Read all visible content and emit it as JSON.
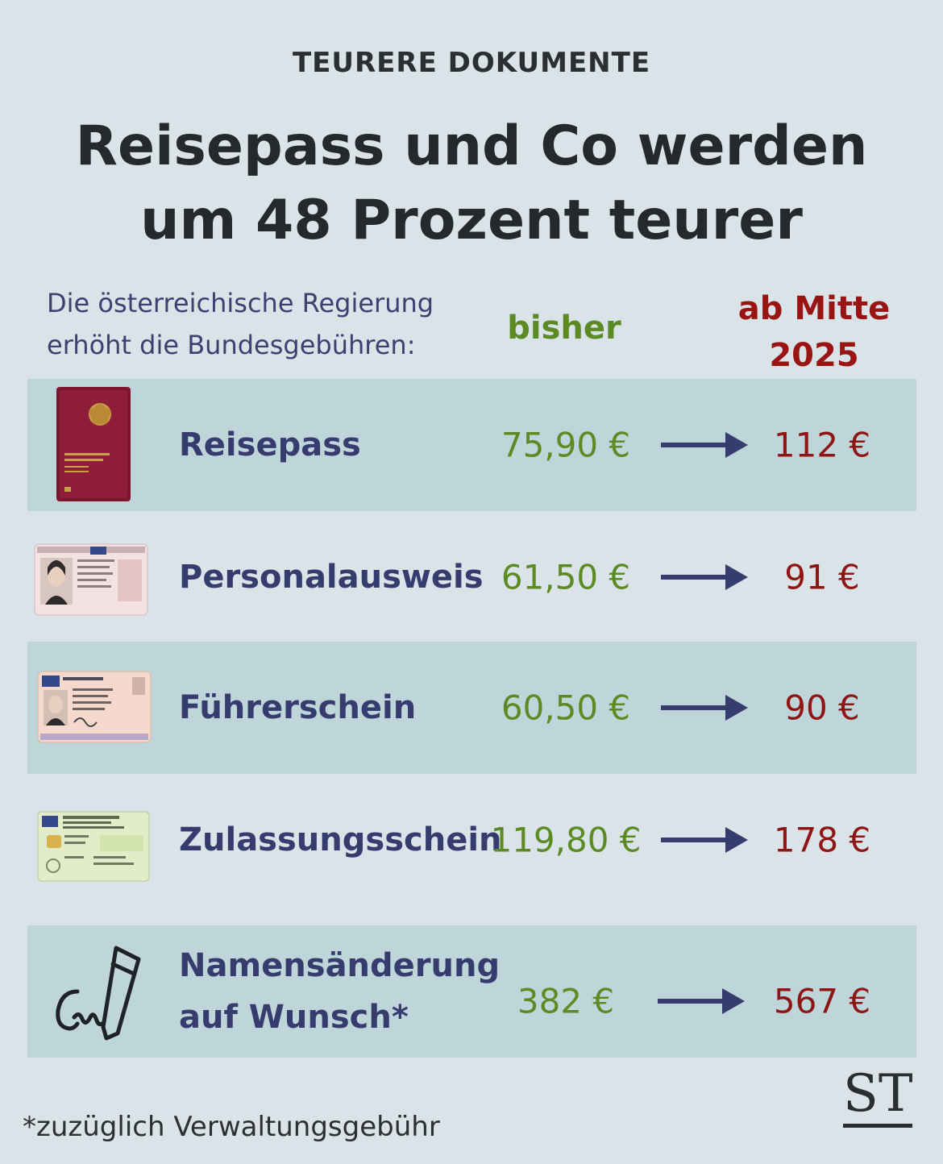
{
  "kicker": "TEURERE DOKUMENTE",
  "headline": {
    "line1": "Reisepass und Co werden",
    "line2": "um 48 Prozent teurer"
  },
  "intro": {
    "line1": "Die österreichische Regierung",
    "line2": "erhöht die Bundesgebühren:"
  },
  "columns": {
    "old": "bisher",
    "new_line1": "ab Mitte",
    "new_line2": "2025"
  },
  "rows": [
    {
      "name": "Reisepass",
      "name_line2": "",
      "old": "75,90 €",
      "new": "112 €",
      "icon": "passport-icon"
    },
    {
      "name": "Personalausweis",
      "name_line2": "",
      "old": "61,50 €",
      "new": "91 €",
      "icon": "id-card-icon"
    },
    {
      "name": "Führerschein",
      "name_line2": "",
      "old": "60,50 €",
      "new": "90 €",
      "icon": "driving-licence-icon"
    },
    {
      "name": "Zulassungsschein",
      "name_line2": "",
      "old": "119,80 €",
      "new": "178 €",
      "icon": "vehicle-registration-icon"
    },
    {
      "name": "Namensänderung",
      "name_line2": "auf Wunsch*",
      "old": "382 €",
      "new": "567 €",
      "icon": "signature-pen-icon"
    }
  ],
  "footnote": "*zuzüglich Verwaltungsgebühr",
  "logo": "ST",
  "colors": {
    "background": "#d9e3e8",
    "row_tint": "#bed5da",
    "old_price": "#5c8a23",
    "new_price": "#9a1414",
    "label": "#363c6e"
  }
}
